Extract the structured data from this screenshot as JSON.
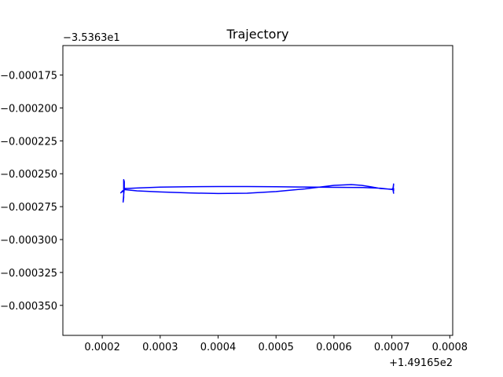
{
  "chart_data": {
    "type": "line",
    "title": "Trajectory",
    "xlabel": "",
    "ylabel": "",
    "x_offset_label": "+1.49165e2",
    "y_offset_label": "−3.5363e1",
    "xlim": [
      0.000132,
      0.000805
    ],
    "ylim": [
      -0.0003728,
      -0.0001526
    ],
    "x_ticks": [
      0.0002,
      0.0003,
      0.0004,
      0.0005,
      0.0006,
      0.0007,
      0.0008
    ],
    "x_tick_labels": [
      "0.0002",
      "0.0003",
      "0.0004",
      "0.0005",
      "0.0006",
      "0.0007",
      "0.0008"
    ],
    "y_ticks": [
      -0.000175,
      -0.0002,
      -0.000225,
      -0.00025,
      -0.000275,
      -0.0003,
      -0.000325,
      -0.00035
    ],
    "y_tick_labels": [
      "−0.000175",
      "−0.000200",
      "−0.000225",
      "−0.000250",
      "−0.000275",
      "−0.000300",
      "−0.000325",
      "−0.000350"
    ],
    "grid": false,
    "series": [
      {
        "color": "#0000ff",
        "x": [
          0.000238,
          0.000238,
          0.000237,
          0.000237,
          0.000237,
          0.000236,
          0.000237,
          0.000238,
          0.000237,
          0.000237,
          0.000235,
          0.000232,
          0.000238,
          0.00026,
          0.0003,
          0.00035,
          0.0004,
          0.00045,
          0.0005,
          0.00055,
          0.0006,
          0.00063,
          0.000648,
          0.000665,
          0.00068,
          0.0007,
          0.000702,
          0.000703,
          0.000702,
          0.000703,
          0.000702,
          0.000703,
          0.000703,
          0.000702,
          0.00068,
          0.00065,
          0.0006,
          0.00055,
          0.0005,
          0.00045,
          0.0004,
          0.00035,
          0.0003,
          0.00026,
          0.000245,
          0.000238,
          0.000238
        ],
        "y": [
          -0.0002615,
          -0.000256,
          -0.0002545,
          -0.000262,
          -0.000268,
          -0.0002715,
          -0.000266,
          -0.0002615,
          -0.0002625,
          -0.000264,
          -0.000263,
          -0.0002645,
          -0.000262,
          -0.000263,
          -0.0002638,
          -0.0002646,
          -0.000265,
          -0.0002648,
          -0.0002635,
          -0.0002615,
          -0.0002588,
          -0.0002582,
          -0.0002588,
          -0.00026,
          -0.0002612,
          -0.0002618,
          -0.000261,
          -0.0002578,
          -0.0002625,
          -0.0002648,
          -0.0002625,
          -0.0002612,
          -0.000263,
          -0.000262,
          -0.000261,
          -0.0002605,
          -0.0002603,
          -0.0002601,
          -0.0002599,
          -0.0002597,
          -0.0002597,
          -0.0002599,
          -0.0002602,
          -0.0002608,
          -0.0002611,
          -0.0002612,
          -0.0002615
        ]
      }
    ]
  }
}
